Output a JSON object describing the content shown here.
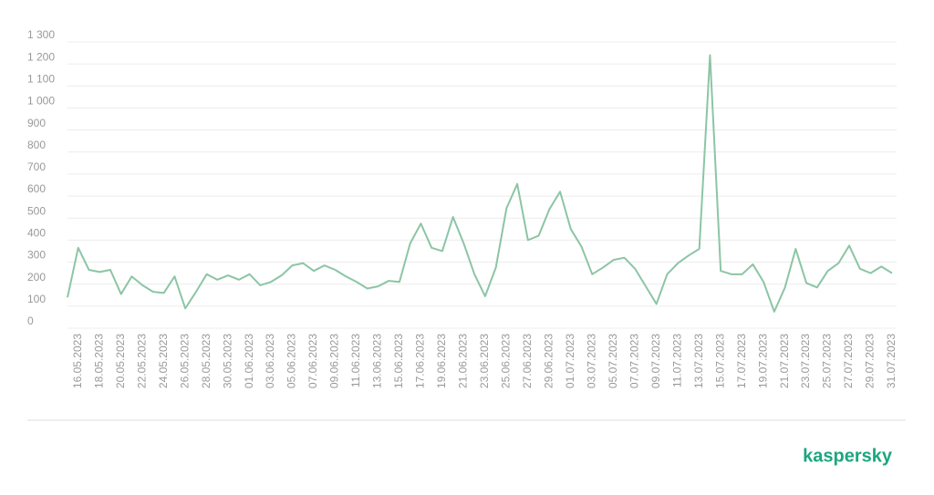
{
  "chart_data": {
    "type": "line",
    "categories": [
      null,
      "16.05.2023",
      null,
      "18.05.2023",
      null,
      "20.05.2023",
      null,
      "22.05.2023",
      null,
      "24.05.2023",
      null,
      "26.05.2023",
      null,
      "28.05.2023",
      null,
      "30.05.2023",
      null,
      "01.06.2023",
      null,
      "03.06.2023",
      null,
      "05.06.2023",
      null,
      "07.06.2023",
      null,
      "09.06.2023",
      null,
      "11.06.2023",
      null,
      "13.06.2023",
      null,
      "15.06.2023",
      null,
      "17.06.2023",
      null,
      "19.06.2023",
      null,
      "21.06.2023",
      null,
      "23.06.2023",
      null,
      "25.06.2023",
      null,
      "27.06.2023",
      null,
      "29.06.2023",
      null,
      "01.07.2023",
      null,
      "03.07.2023",
      null,
      "05.07.2023",
      null,
      "07.07.2023",
      null,
      "09.07.2023",
      null,
      "11.07.2023",
      null,
      "13.07.2023",
      null,
      "15.07.2023",
      null,
      "17.07.2023",
      null,
      "19.07.2023",
      null,
      "21.07.2023",
      null,
      "23.07.2023",
      null,
      "25.07.2023",
      null,
      "27.07.2023",
      null,
      "29.07.2023",
      null,
      "31.07.2023"
    ],
    "series": [
      {
        "color": "#8cc5a5",
        "values": [
          140,
          365,
          265,
          255,
          265,
          155,
          235,
          195,
          165,
          160,
          235,
          90,
          165,
          245,
          220,
          240,
          220,
          245,
          195,
          210,
          240,
          285,
          295,
          260,
          285,
          265,
          235,
          210,
          180,
          190,
          215,
          210,
          385,
          475,
          365,
          350,
          505,
          385,
          245,
          145,
          275,
          545,
          655,
          400,
          420,
          540,
          620,
          450,
          370,
          245,
          275,
          310,
          320,
          270,
          190,
          110,
          245,
          295,
          330,
          360,
          1240,
          260,
          245,
          245,
          290,
          210,
          75,
          185,
          360,
          205,
          185,
          260,
          295,
          375,
          270,
          250,
          280,
          250
        ]
      }
    ],
    "ylim": [
      0,
      1300
    ],
    "yticks": [
      0,
      100,
      200,
      300,
      400,
      500,
      600,
      700,
      800,
      900,
      {
        "value": 1000,
        "label": "1 000"
      },
      {
        "value": 1100,
        "label": "1 100"
      },
      {
        "value": 1200,
        "label": "1 200"
      },
      {
        "value": 1300,
        "label": "1 300"
      }
    ],
    "grid": true,
    "logo": "kaspersky"
  }
}
